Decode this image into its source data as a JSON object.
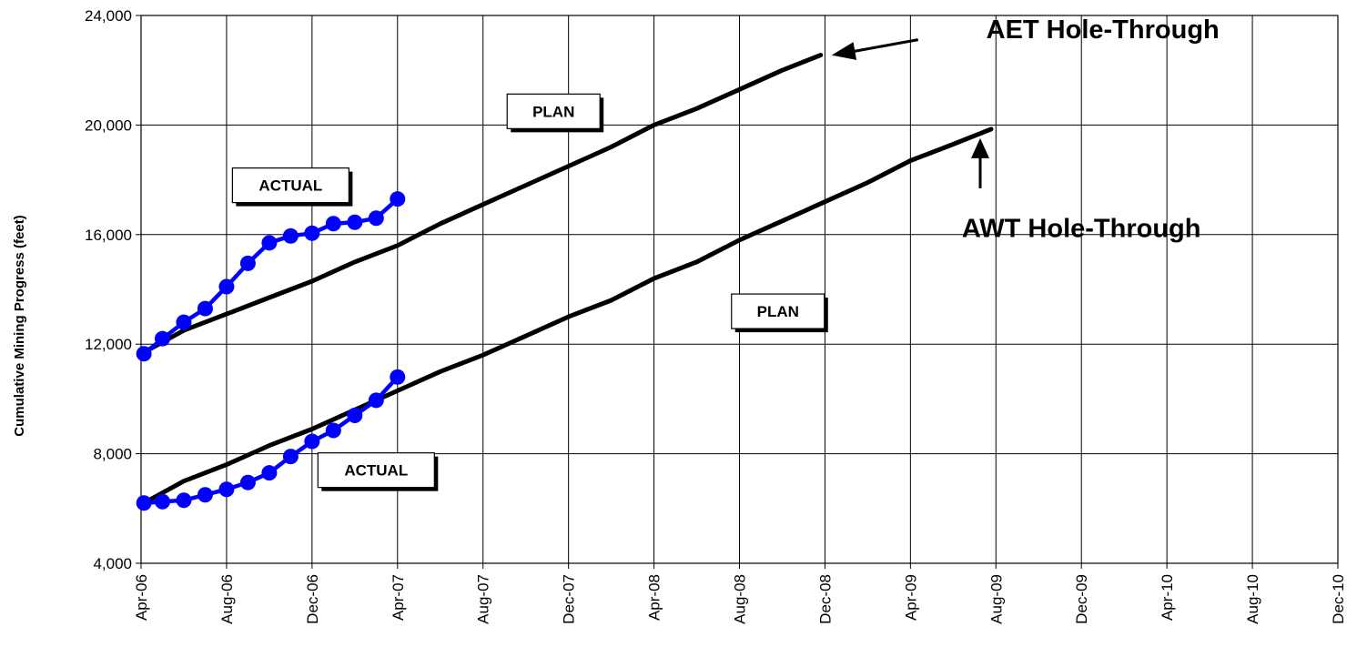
{
  "chart_data": {
    "type": "line",
    "title": "",
    "xlabel": "",
    "ylabel": "Cumulative Mining Progress (feet)",
    "ylim": [
      4000,
      24000
    ],
    "xlim": [
      "2006-04",
      "2010-12"
    ],
    "grid": true,
    "yticks": [
      4000,
      8000,
      12000,
      16000,
      20000,
      24000
    ],
    "ytick_labels": [
      "4,000",
      "8,000",
      "12,000",
      "16,000",
      "20,000",
      "24,000"
    ],
    "xticks": [
      "2006-04",
      "2006-08",
      "2006-12",
      "2007-04",
      "2007-08",
      "2007-12",
      "2008-04",
      "2008-08",
      "2008-12",
      "2009-04",
      "2009-08",
      "2009-12",
      "2010-04",
      "2010-08",
      "2010-12"
    ],
    "xtick_labels": [
      "Apr-06",
      "Aug-06",
      "Dec-06",
      "Apr-07",
      "Aug-07",
      "Dec-07",
      "Apr-08",
      "Aug-08",
      "Dec-08",
      "Apr-09",
      "Aug-09",
      "Dec-09",
      "Apr-10",
      "Aug-10",
      "Dec-10"
    ],
    "series": [
      {
        "role": "plan-upper",
        "color": "#000000",
        "marker": "none",
        "points": [
          [
            "2006-04-05",
            11700
          ],
          [
            "2006-06-01",
            12500
          ],
          [
            "2006-08-01",
            13100
          ],
          [
            "2006-10-01",
            13700
          ],
          [
            "2006-12-01",
            14300
          ],
          [
            "2007-02-01",
            15000
          ],
          [
            "2007-04-01",
            15600
          ],
          [
            "2007-06-01",
            16400
          ],
          [
            "2007-08-01",
            17100
          ],
          [
            "2007-10-01",
            17800
          ],
          [
            "2007-12-01",
            18500
          ],
          [
            "2008-02-01",
            19200
          ],
          [
            "2008-04-01",
            20000
          ],
          [
            "2008-06-01",
            20600
          ],
          [
            "2008-08-01",
            21300
          ],
          [
            "2008-10-01",
            22000
          ],
          [
            "2008-11-25",
            22550
          ]
        ]
      },
      {
        "role": "plan-lower",
        "color": "#000000",
        "marker": "none",
        "points": [
          [
            "2006-04-05",
            6200
          ],
          [
            "2006-06-01",
            7000
          ],
          [
            "2006-08-01",
            7600
          ],
          [
            "2006-10-01",
            8300
          ],
          [
            "2006-12-01",
            8900
          ],
          [
            "2007-02-01",
            9600
          ],
          [
            "2007-04-01",
            10300
          ],
          [
            "2007-06-01",
            11000
          ],
          [
            "2007-08-01",
            11600
          ],
          [
            "2007-10-01",
            12300
          ],
          [
            "2007-12-01",
            13000
          ],
          [
            "2008-02-01",
            13600
          ],
          [
            "2008-04-01",
            14400
          ],
          [
            "2008-06-01",
            15000
          ],
          [
            "2008-08-01",
            15800
          ],
          [
            "2008-10-01",
            16500
          ],
          [
            "2008-12-01",
            17200
          ],
          [
            "2009-02-01",
            17900
          ],
          [
            "2009-04-01",
            18700
          ],
          [
            "2009-06-01",
            19300
          ],
          [
            "2009-07-25",
            19850
          ]
        ]
      },
      {
        "role": "actual-upper",
        "color": "#0000ff",
        "marker": "circle",
        "points": [
          [
            "2006-04-05",
            11650
          ],
          [
            "2006-05-01",
            12200
          ],
          [
            "2006-06-01",
            12800
          ],
          [
            "2006-07-01",
            13300
          ],
          [
            "2006-08-01",
            14100
          ],
          [
            "2006-09-01",
            14950
          ],
          [
            "2006-10-01",
            15700
          ],
          [
            "2006-11-01",
            15950
          ],
          [
            "2006-12-01",
            16050
          ],
          [
            "2007-01-01",
            16400
          ],
          [
            "2007-02-01",
            16450
          ],
          [
            "2007-03-01",
            16600
          ],
          [
            "2007-04-01",
            17300
          ]
        ]
      },
      {
        "role": "actual-lower",
        "color": "#0000ff",
        "marker": "circle",
        "points": [
          [
            "2006-04-05",
            6200
          ],
          [
            "2006-05-01",
            6250
          ],
          [
            "2006-06-01",
            6300
          ],
          [
            "2006-07-01",
            6500
          ],
          [
            "2006-08-01",
            6700
          ],
          [
            "2006-09-01",
            6950
          ],
          [
            "2006-10-01",
            7300
          ],
          [
            "2006-11-01",
            7900
          ],
          [
            "2006-12-01",
            8450
          ],
          [
            "2007-01-01",
            8850
          ],
          [
            "2007-02-01",
            9400
          ],
          [
            "2007-03-01",
            9950
          ],
          [
            "2007-04-01",
            10800
          ]
        ]
      }
    ],
    "annotations": [
      {
        "text": "PLAN",
        "style": "box",
        "at": [
          "2007-11-10",
          20500
        ]
      },
      {
        "text": "PLAN",
        "style": "box",
        "at": [
          "2008-09-25",
          13200
        ]
      },
      {
        "text": "ACTUAL",
        "style": "box",
        "at": [
          "2006-11-01",
          17800
        ]
      },
      {
        "text": "ACTUAL",
        "style": "box",
        "at": [
          "2007-03-01",
          7400
        ]
      },
      {
        "text": "AET Hole-Through",
        "style": "callout-left-arrow",
        "at": [
          "2010-01-01",
          23500
        ]
      },
      {
        "text": "AWT Hole-Through",
        "style": "callout-up-arrow",
        "at": [
          "2009-12-01",
          16250
        ]
      }
    ]
  }
}
